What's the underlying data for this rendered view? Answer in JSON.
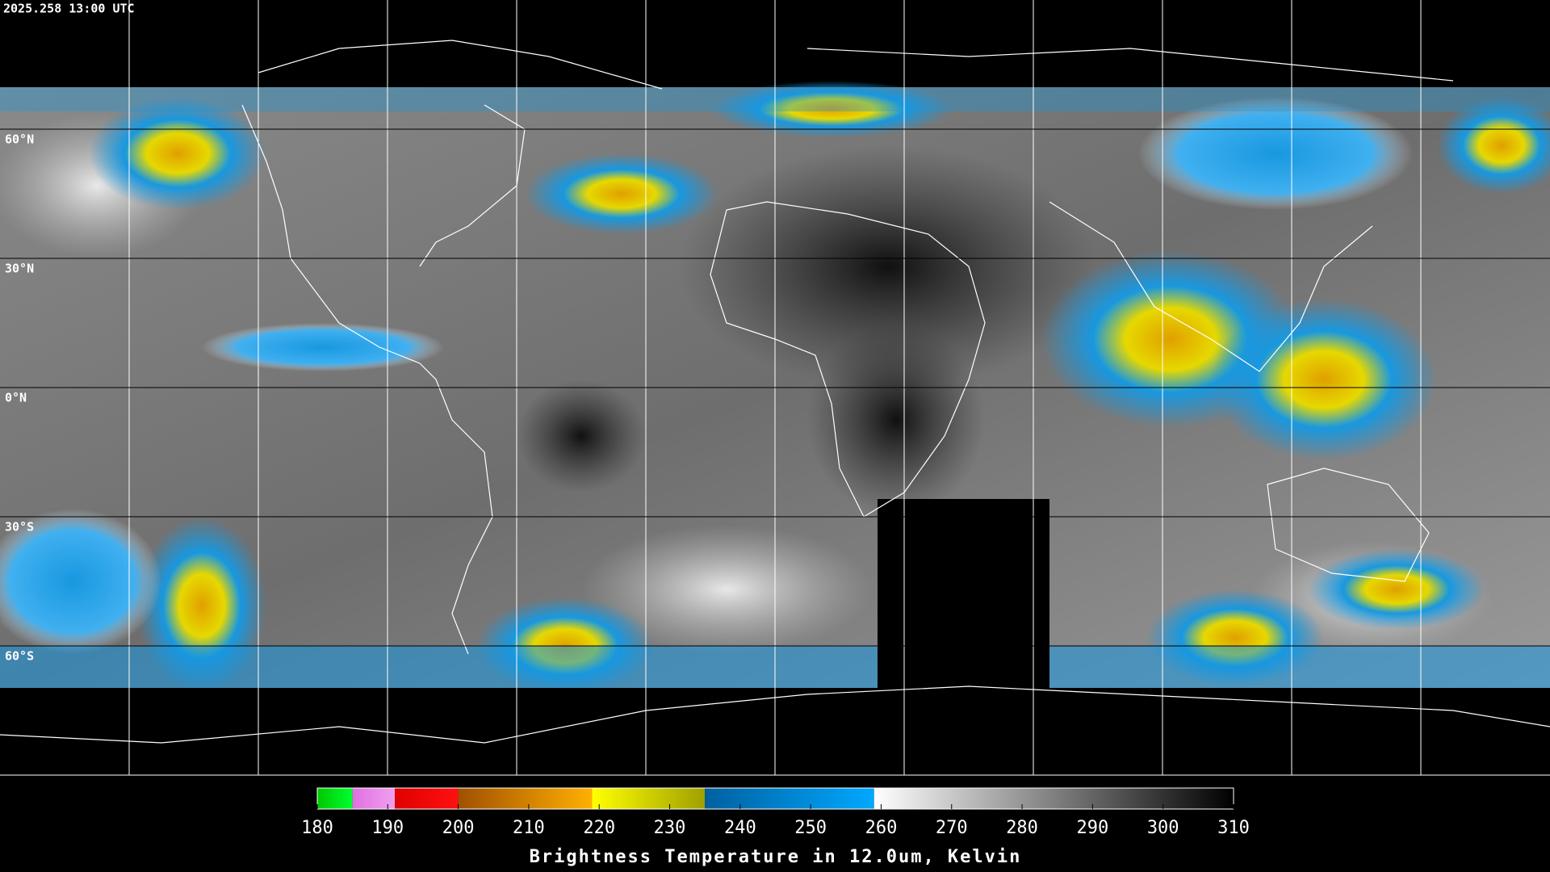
{
  "timestamp": "2025.258 13:00 UTC",
  "latitude_labels": [
    "60°N",
    "30°N",
    "0°N",
    "30°S",
    "60°S"
  ],
  "colorbar": {
    "label": "Brightness Temperature in 12.0um, Kelvin",
    "range": [
      180,
      310
    ],
    "ticks": [
      180,
      190,
      200,
      210,
      220,
      230,
      240,
      250,
      260,
      270,
      280,
      290,
      300,
      310
    ],
    "segments": [
      {
        "from": 180,
        "to": 185,
        "colors": [
          "#00c800",
          "#00ff30"
        ]
      },
      {
        "from": 185,
        "to": 191,
        "colors": [
          "#e070e0",
          "#f0a0f0"
        ]
      },
      {
        "from": 191,
        "to": 200,
        "colors": [
          "#e00000",
          "#ff1010"
        ]
      },
      {
        "from": 200,
        "to": 219,
        "colors": [
          "#a05000",
          "#ffb000"
        ]
      },
      {
        "from": 219,
        "to": 235,
        "colors": [
          "#ffff00",
          "#a0a000"
        ]
      },
      {
        "from": 235,
        "to": 259,
        "colors": [
          "#0060a0",
          "#00a8ff"
        ]
      },
      {
        "from": 259,
        "to": 310,
        "colors": [
          "#ffffff",
          "#000000"
        ]
      }
    ]
  }
}
